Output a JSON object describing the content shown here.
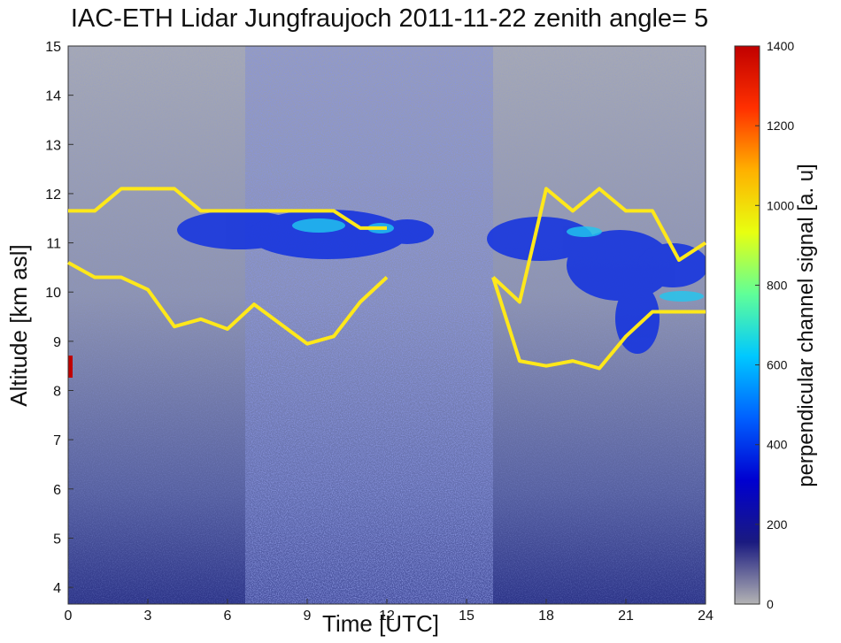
{
  "chart_data": {
    "type": "line",
    "title": "IAC-ETH Lidar Jungfraujoch 2011-11-22 zenith angle= 5",
    "xlabel": "Time [UTC]",
    "ylabel": "Altitude [km asl]",
    "xlim": [
      0,
      24
    ],
    "ylim": [
      3.66,
      15
    ],
    "xticks": [
      0,
      3,
      6,
      9,
      12,
      15,
      18,
      21,
      24
    ],
    "yticks": [
      4,
      5,
      6,
      7,
      8,
      9,
      10,
      11,
      12,
      13,
      14,
      15
    ],
    "series": [
      {
        "color": "#ffe81a",
        "x": [
          0,
          1,
          2,
          3,
          4,
          5,
          6,
          7,
          8,
          9,
          10,
          11,
          12
        ],
        "values": [
          11.65,
          11.65,
          12.1,
          12.1,
          12.1,
          11.65,
          11.65,
          11.65,
          11.65,
          11.65,
          11.65,
          11.3,
          11.3
        ]
      },
      {
        "color": "#ffe81a",
        "x": [
          0,
          1,
          2,
          3,
          4,
          5,
          6,
          7,
          8,
          9,
          10,
          11,
          12
        ],
        "values": [
          10.6,
          10.3,
          10.3,
          10.05,
          9.3,
          9.45,
          9.25,
          9.75,
          9.35,
          8.95,
          9.1,
          9.8,
          10.3
        ]
      },
      {
        "color": "#ffe81a",
        "x": [
          16,
          17,
          18,
          19,
          20,
          21,
          22,
          23,
          24
        ],
        "values": [
          10.3,
          9.8,
          12.1,
          11.65,
          12.1,
          11.65,
          11.65,
          10.65,
          11.0
        ]
      },
      {
        "color": "#ffe81a",
        "x": [
          16,
          17,
          18,
          19,
          20,
          21,
          22,
          23,
          24
        ],
        "values": [
          10.3,
          8.6,
          8.5,
          8.6,
          8.45,
          9.1,
          9.6,
          9.6,
          9.6
        ]
      }
    ],
    "colorbar": {
      "label": "perpendicular channel signal [a. u]",
      "lim": [
        0,
        1400
      ],
      "ticks": [
        0,
        200,
        400,
        600,
        800,
        1000,
        1200,
        1400
      ],
      "colormap": [
        "#b4b4b4",
        "#1a1a80",
        "#0000d0",
        "#0060ff",
        "#00c8ff",
        "#60ff98",
        "#e8ff10",
        "#ffb000",
        "#ff3000",
        "#c00000"
      ]
    }
  }
}
